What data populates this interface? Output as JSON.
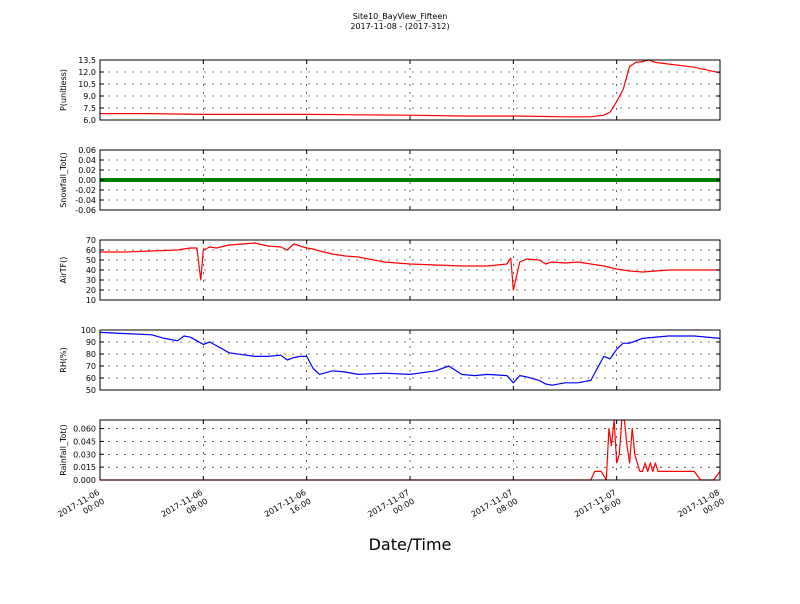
{
  "title_line1": "Site10_BayView_Fifteen",
  "title_line2": "2017-11-08 - (2017-312)",
  "xlabel": "Date/Time",
  "x_ticks": [
    {
      "t": 0,
      "line1": "2017-11-06",
      "line2": "00:00"
    },
    {
      "t": 8,
      "line1": "2017-11-06",
      "line2": "08:00"
    },
    {
      "t": 16,
      "line1": "2017-11-06",
      "line2": "16:00"
    },
    {
      "t": 24,
      "line1": "2017-11-07",
      "line2": "00:00"
    },
    {
      "t": 32,
      "line1": "2017-11-07",
      "line2": "08:00"
    },
    {
      "t": 40,
      "line1": "2017-11-07",
      "line2": "16:00"
    },
    {
      "t": 48,
      "line1": "2017-11-08",
      "line2": "00:00"
    }
  ],
  "chart_data": [
    {
      "type": "line",
      "ylabel": "P(unitless)",
      "ylim": [
        6.0,
        13.5
      ],
      "yticks": [
        6.0,
        7.5,
        9.0,
        10.5,
        12.0,
        13.5
      ],
      "yformat": 1,
      "color": "#ff0000",
      "grid": true,
      "x_hours": [
        0,
        4,
        8,
        12,
        16,
        20,
        24,
        28,
        32,
        36,
        38,
        39,
        39.5,
        40,
        40.5,
        41,
        41.5,
        42,
        42.5,
        43,
        44,
        46,
        48
      ],
      "y": [
        6.8,
        6.8,
        6.7,
        6.7,
        6.7,
        6.65,
        6.6,
        6.5,
        6.5,
        6.4,
        6.4,
        6.6,
        7.0,
        8.3,
        9.8,
        12.7,
        13.2,
        13.3,
        13.5,
        13.2,
        13.0,
        12.6,
        11.9
      ]
    },
    {
      "type": "line",
      "ylabel": "Snowfall_Tot()",
      "ylim": [
        -0.06,
        0.06
      ],
      "yticks": [
        -0.06,
        -0.04,
        -0.02,
        0.0,
        0.02,
        0.04,
        0.06
      ],
      "yformat": 2,
      "color": "#008000",
      "marker": "dots",
      "grid": true,
      "x_hours": [
        0,
        48
      ],
      "y": [
        0.0,
        0.0
      ]
    },
    {
      "type": "line",
      "ylabel": "AirTF()",
      "ylim": [
        10,
        70
      ],
      "yticks": [
        10,
        20,
        30,
        40,
        50,
        60,
        70
      ],
      "yformat": 0,
      "color": "#ff0000",
      "grid": true,
      "x_hours": [
        0,
        2,
        4,
        6,
        7,
        7.5,
        7.8,
        8,
        8.5,
        9,
        10,
        11,
        12,
        13,
        14,
        14.5,
        15,
        16,
        16.5,
        17,
        18,
        19,
        20,
        22,
        24,
        26,
        28,
        30,
        31.5,
        31.8,
        32,
        32.5,
        33,
        34,
        34.5,
        35,
        36,
        37,
        38,
        39,
        40,
        41,
        42,
        44,
        46,
        48
      ],
      "y": [
        58,
        58,
        59,
        60,
        62,
        62,
        30,
        60,
        63,
        62,
        65,
        66,
        67,
        64,
        63,
        60,
        66,
        62,
        61,
        59,
        56,
        54,
        53,
        48,
        46,
        45,
        44,
        44,
        46,
        52,
        20,
        48,
        51,
        50,
        46,
        48,
        47,
        48,
        46,
        44,
        41,
        39,
        38,
        40,
        40,
        40
      ]
    },
    {
      "type": "line",
      "ylabel": "RH(%)",
      "ylim": [
        50,
        100
      ],
      "yticks": [
        50,
        60,
        70,
        80,
        90,
        100
      ],
      "yformat": 0,
      "color": "#0000ff",
      "grid": true,
      "x_hours": [
        0,
        2,
        4,
        5,
        6,
        6.5,
        7,
        7.5,
        8,
        8.5,
        9,
        10,
        12,
        13,
        14,
        14.5,
        15,
        15.5,
        16,
        16.5,
        17,
        18,
        19,
        20,
        22,
        24,
        26,
        27,
        28,
        29,
        30,
        31.5,
        32,
        32.5,
        33,
        34,
        34.5,
        35,
        36,
        37,
        38,
        38.5,
        39,
        39.5,
        40,
        40.5,
        41,
        42,
        44,
        46,
        48
      ],
      "y": [
        98,
        97,
        96,
        93,
        91,
        95,
        94,
        91,
        88,
        90,
        87,
        81,
        78,
        78,
        79,
        75,
        77,
        78,
        78,
        68,
        63,
        66,
        65,
        63,
        64,
        63,
        66,
        70,
        63,
        62,
        63,
        62,
        56,
        62,
        61,
        58,
        55,
        54,
        56,
        56,
        58,
        68,
        78,
        76,
        84,
        89,
        89,
        93,
        95,
        95,
        93
      ]
    },
    {
      "type": "line",
      "ylabel": "Rainfall_Tot()",
      "ylim": [
        0.0,
        0.07
      ],
      "yticks": [
        0.0,
        0.015,
        0.03,
        0.045,
        0.06
      ],
      "yformat": 3,
      "color": "#ff0000",
      "grid": true,
      "x_hours": [
        0,
        38,
        38.3,
        38.8,
        39.2,
        39.4,
        39.6,
        39.8,
        40.0,
        40.2,
        40.4,
        40.6,
        40.8,
        41.0,
        41.2,
        41.4,
        41.6,
        41.8,
        42.0,
        42.2,
        42.4,
        42.6,
        42.8,
        43.0,
        43.2,
        43.4,
        43.6,
        44,
        45,
        46,
        46.5,
        47,
        47.5,
        48
      ],
      "y": [
        0,
        0,
        0.01,
        0.01,
        0,
        0.06,
        0.04,
        0.07,
        0.02,
        0.03,
        0.07,
        0.07,
        0.04,
        0.02,
        0.06,
        0.03,
        0.02,
        0.01,
        0.01,
        0.02,
        0.01,
        0.02,
        0.01,
        0.02,
        0.01,
        0.01,
        0.01,
        0.01,
        0.01,
        0.01,
        0.0,
        0.0,
        0.0,
        0.01
      ]
    }
  ]
}
